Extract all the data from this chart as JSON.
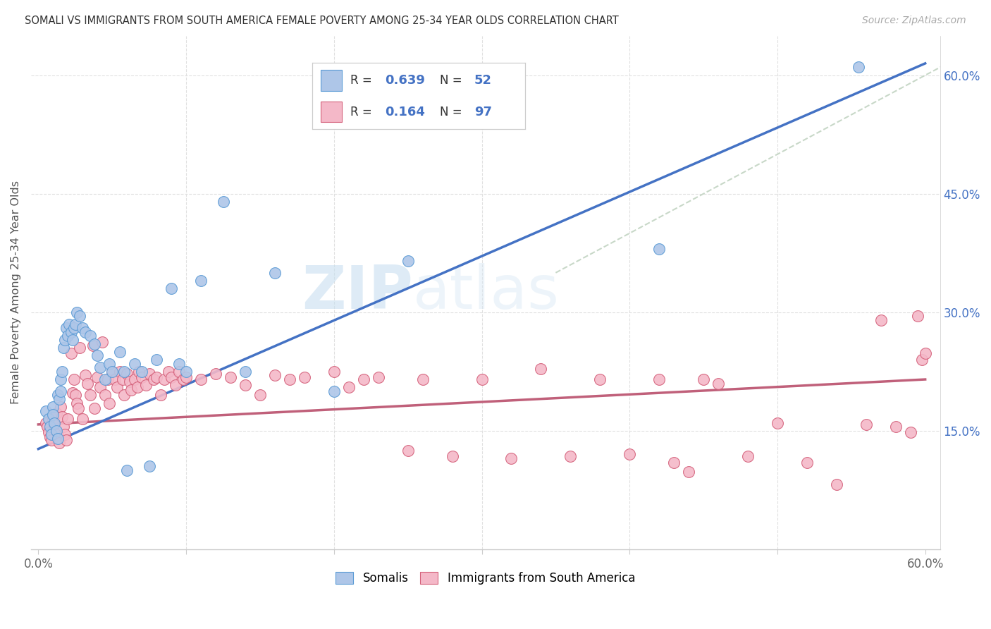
{
  "title": "SOMALI VS IMMIGRANTS FROM SOUTH AMERICA FEMALE POVERTY AMONG 25-34 YEAR OLDS CORRELATION CHART",
  "source": "Source: ZipAtlas.com",
  "ylabel": "Female Poverty Among 25-34 Year Olds",
  "xlim": [
    0.0,
    0.6
  ],
  "ylim": [
    0.0,
    0.65
  ],
  "somali_color": "#aec6e8",
  "somali_edge_color": "#5b9bd5",
  "south_america_color": "#f4b8c8",
  "south_america_edge_color": "#d4607a",
  "somali_line_color": "#4472c4",
  "south_america_line_color": "#c0607a",
  "diagonal_color": "#c8d8c8",
  "watermark_color": "#d8eaf8",
  "somali_line": [
    0.0,
    0.127,
    0.6,
    0.615
  ],
  "south_america_line": [
    0.0,
    0.158,
    0.6,
    0.215
  ],
  "somali_x": [
    0.005,
    0.007,
    0.008,
    0.009,
    0.01,
    0.01,
    0.011,
    0.012,
    0.013,
    0.013,
    0.014,
    0.015,
    0.015,
    0.016,
    0.017,
    0.018,
    0.019,
    0.02,
    0.021,
    0.022,
    0.023,
    0.024,
    0.025,
    0.026,
    0.028,
    0.03,
    0.032,
    0.035,
    0.038,
    0.04,
    0.042,
    0.045,
    0.048,
    0.05,
    0.055,
    0.058,
    0.06,
    0.065,
    0.07,
    0.075,
    0.08,
    0.09,
    0.095,
    0.1,
    0.11,
    0.125,
    0.14,
    0.16,
    0.2,
    0.25,
    0.42,
    0.555
  ],
  "somali_y": [
    0.175,
    0.165,
    0.155,
    0.145,
    0.18,
    0.17,
    0.16,
    0.15,
    0.195,
    0.14,
    0.19,
    0.2,
    0.215,
    0.225,
    0.255,
    0.265,
    0.28,
    0.27,
    0.285,
    0.275,
    0.265,
    0.28,
    0.285,
    0.3,
    0.295,
    0.28,
    0.275,
    0.27,
    0.26,
    0.245,
    0.23,
    0.215,
    0.235,
    0.225,
    0.25,
    0.225,
    0.1,
    0.235,
    0.225,
    0.105,
    0.24,
    0.33,
    0.235,
    0.225,
    0.34,
    0.44,
    0.225,
    0.35,
    0.2,
    0.365,
    0.38,
    0.61
  ],
  "south_america_x": [
    0.005,
    0.006,
    0.007,
    0.008,
    0.009,
    0.01,
    0.011,
    0.012,
    0.013,
    0.014,
    0.015,
    0.016,
    0.017,
    0.018,
    0.019,
    0.02,
    0.022,
    0.023,
    0.024,
    0.025,
    0.026,
    0.027,
    0.028,
    0.03,
    0.032,
    0.033,
    0.035,
    0.037,
    0.038,
    0.04,
    0.042,
    0.043,
    0.045,
    0.047,
    0.048,
    0.05,
    0.052,
    0.053,
    0.055,
    0.057,
    0.058,
    0.06,
    0.062,
    0.063,
    0.065,
    0.067,
    0.068,
    0.07,
    0.073,
    0.075,
    0.078,
    0.08,
    0.083,
    0.085,
    0.088,
    0.09,
    0.093,
    0.095,
    0.098,
    0.1,
    0.11,
    0.12,
    0.13,
    0.14,
    0.15,
    0.16,
    0.17,
    0.18,
    0.2,
    0.21,
    0.22,
    0.23,
    0.25,
    0.26,
    0.28,
    0.3,
    0.32,
    0.34,
    0.36,
    0.38,
    0.4,
    0.42,
    0.43,
    0.44,
    0.45,
    0.46,
    0.48,
    0.5,
    0.52,
    0.54,
    0.56,
    0.57,
    0.58,
    0.59,
    0.595,
    0.598,
    0.6
  ],
  "south_america_y": [
    0.16,
    0.155,
    0.148,
    0.142,
    0.138,
    0.165,
    0.158,
    0.172,
    0.145,
    0.135,
    0.18,
    0.168,
    0.155,
    0.145,
    0.138,
    0.165,
    0.248,
    0.198,
    0.215,
    0.195,
    0.185,
    0.178,
    0.255,
    0.165,
    0.22,
    0.21,
    0.195,
    0.258,
    0.178,
    0.218,
    0.205,
    0.262,
    0.195,
    0.215,
    0.185,
    0.225,
    0.215,
    0.205,
    0.225,
    0.215,
    0.195,
    0.222,
    0.212,
    0.202,
    0.215,
    0.205,
    0.225,
    0.218,
    0.208,
    0.222,
    0.215,
    0.218,
    0.195,
    0.215,
    0.225,
    0.218,
    0.208,
    0.225,
    0.215,
    0.218,
    0.215,
    0.222,
    0.218,
    0.208,
    0.195,
    0.22,
    0.215,
    0.218,
    0.225,
    0.205,
    0.215,
    0.218,
    0.125,
    0.215,
    0.118,
    0.215,
    0.115,
    0.228,
    0.118,
    0.215,
    0.12,
    0.215,
    0.11,
    0.098,
    0.215,
    0.21,
    0.118,
    0.16,
    0.11,
    0.082,
    0.158,
    0.29,
    0.155,
    0.148,
    0.295,
    0.24,
    0.248
  ]
}
